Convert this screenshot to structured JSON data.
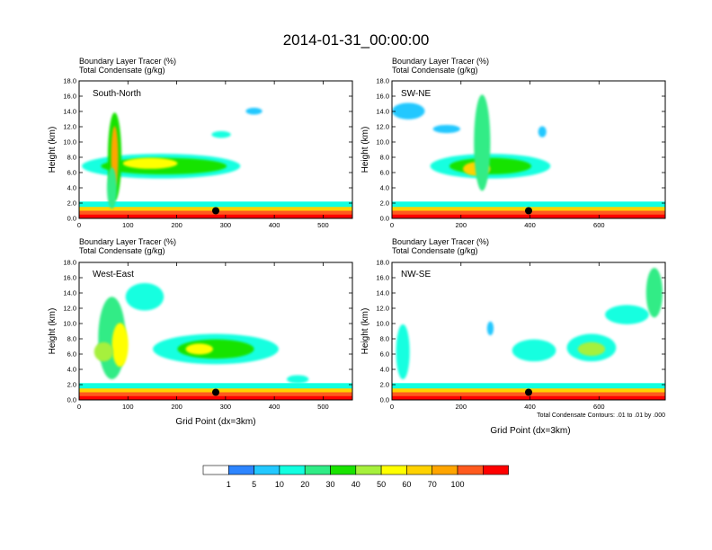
{
  "figure": {
    "title": "2014-01-31_00:00:00",
    "footnote": "Total Condensate Contours: .01 to .01 by .000",
    "colorbar": {
      "labels": [
        "1",
        "5",
        "10",
        "20",
        "30",
        "40",
        "50",
        "60",
        "70",
        "100"
      ],
      "colors": [
        "#ffffff",
        "#2d85ff",
        "#23c8ff",
        "#12ffe0",
        "#30ec86",
        "#19e300",
        "#a6f03c",
        "#ffff00",
        "#ffd200",
        "#ffa500",
        "#ff5a1e",
        "#ff0000"
      ]
    }
  },
  "chart_data": [
    {
      "type": "heatmap",
      "panel_label": "South-North",
      "header_line1": "Boundary Layer Tracer   (%)",
      "header_line2": "Total Condensate   (g/kg)",
      "xlabel": "",
      "ylabel": "Height (km)",
      "xlim": [
        0,
        560
      ],
      "ylim": [
        0,
        18
      ],
      "xticks": [
        0,
        100,
        200,
        300,
        400,
        500
      ],
      "yticks": [
        "0.0",
        "2.0",
        "4.0",
        "6.0",
        "8.0",
        "10.0",
        "12.0",
        "14.0",
        "16.0",
        "18.0"
      ],
      "marker": {
        "x": 280,
        "y": 1.0
      }
    },
    {
      "type": "heatmap",
      "panel_label": "SW-NE",
      "header_line1": "Boundary Layer Tracer   (%)",
      "header_line2": "Total Condensate   (g/kg)",
      "xlabel": "",
      "ylabel": "Height (km)",
      "xlim": [
        0,
        792
      ],
      "ylim": [
        0,
        18
      ],
      "xticks": [
        0,
        200,
        400,
        600
      ],
      "yticks": [
        "0.0",
        "2.0",
        "4.0",
        "6.0",
        "8.0",
        "10.0",
        "12.0",
        "14.0",
        "16.0",
        "18.0"
      ],
      "marker": {
        "x": 396,
        "y": 1.0
      }
    },
    {
      "type": "heatmap",
      "panel_label": "West-East",
      "header_line1": "Boundary Layer Tracer   (%)",
      "header_line2": "Total Condensate   (g/kg)",
      "xlabel": "Grid Point (dx=3km)",
      "ylabel": "Height (km)",
      "xlim": [
        0,
        560
      ],
      "ylim": [
        0,
        18
      ],
      "xticks": [
        0,
        100,
        200,
        300,
        400,
        500
      ],
      "yticks": [
        "0.0",
        "2.0",
        "4.0",
        "6.0",
        "8.0",
        "10.0",
        "12.0",
        "14.0",
        "16.0",
        "18.0"
      ],
      "marker": {
        "x": 280,
        "y": 1.0
      }
    },
    {
      "type": "heatmap",
      "panel_label": "NW-SE",
      "header_line1": "Boundary Layer Tracer   (%)",
      "header_line2": "Total Condensate   (g/kg)",
      "xlabel": "Grid Point (dx=3km)",
      "ylabel": "Height (km)",
      "xlim": [
        0,
        792
      ],
      "ylim": [
        0,
        18
      ],
      "xticks": [
        0,
        200,
        400,
        600
      ],
      "yticks": [
        "0.0",
        "2.0",
        "4.0",
        "6.0",
        "8.0",
        "10.0",
        "12.0",
        "14.0",
        "16.0",
        "18.0"
      ],
      "marker": {
        "x": 396,
        "y": 1.0
      }
    }
  ]
}
